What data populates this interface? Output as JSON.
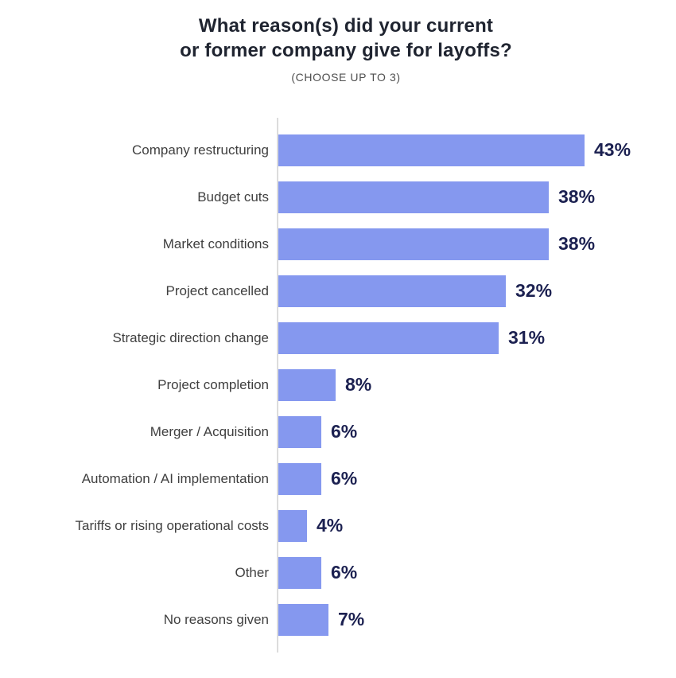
{
  "header": {
    "title_line1": "What reason(s) did your current",
    "title_line2": "or former company give for layoffs?",
    "subtitle": "(CHOOSE UP TO 3)"
  },
  "chart_data": {
    "type": "bar",
    "orientation": "horizontal",
    "title": "What reason(s) did your current or former company give for layoffs?",
    "subtitle": "(CHOOSE UP TO 3)",
    "categories": [
      "Company restructuring",
      "Budget cuts",
      "Market conditions",
      "Project cancelled",
      "Strategic direction change",
      "Project completion",
      "Merger / Acquisition",
      "Automation / AI implementation",
      "Tariffs or rising operational costs",
      "Other",
      "No reasons given"
    ],
    "values": [
      43,
      38,
      38,
      32,
      31,
      8,
      6,
      6,
      4,
      6,
      7
    ],
    "value_suffix": "%",
    "xlabel": "",
    "ylabel": "",
    "xlim": [
      0,
      45
    ],
    "grid": false,
    "legend": false,
    "data_labels": true,
    "colors": {
      "bar": "#8598ef",
      "value_text": "#1c2151",
      "category_text": "#3f3f3f",
      "title_text": "#1f2430",
      "subtitle_text": "#4f4f4f",
      "axis_line": "#dcdcdc",
      "background": "#ffffff"
    }
  }
}
